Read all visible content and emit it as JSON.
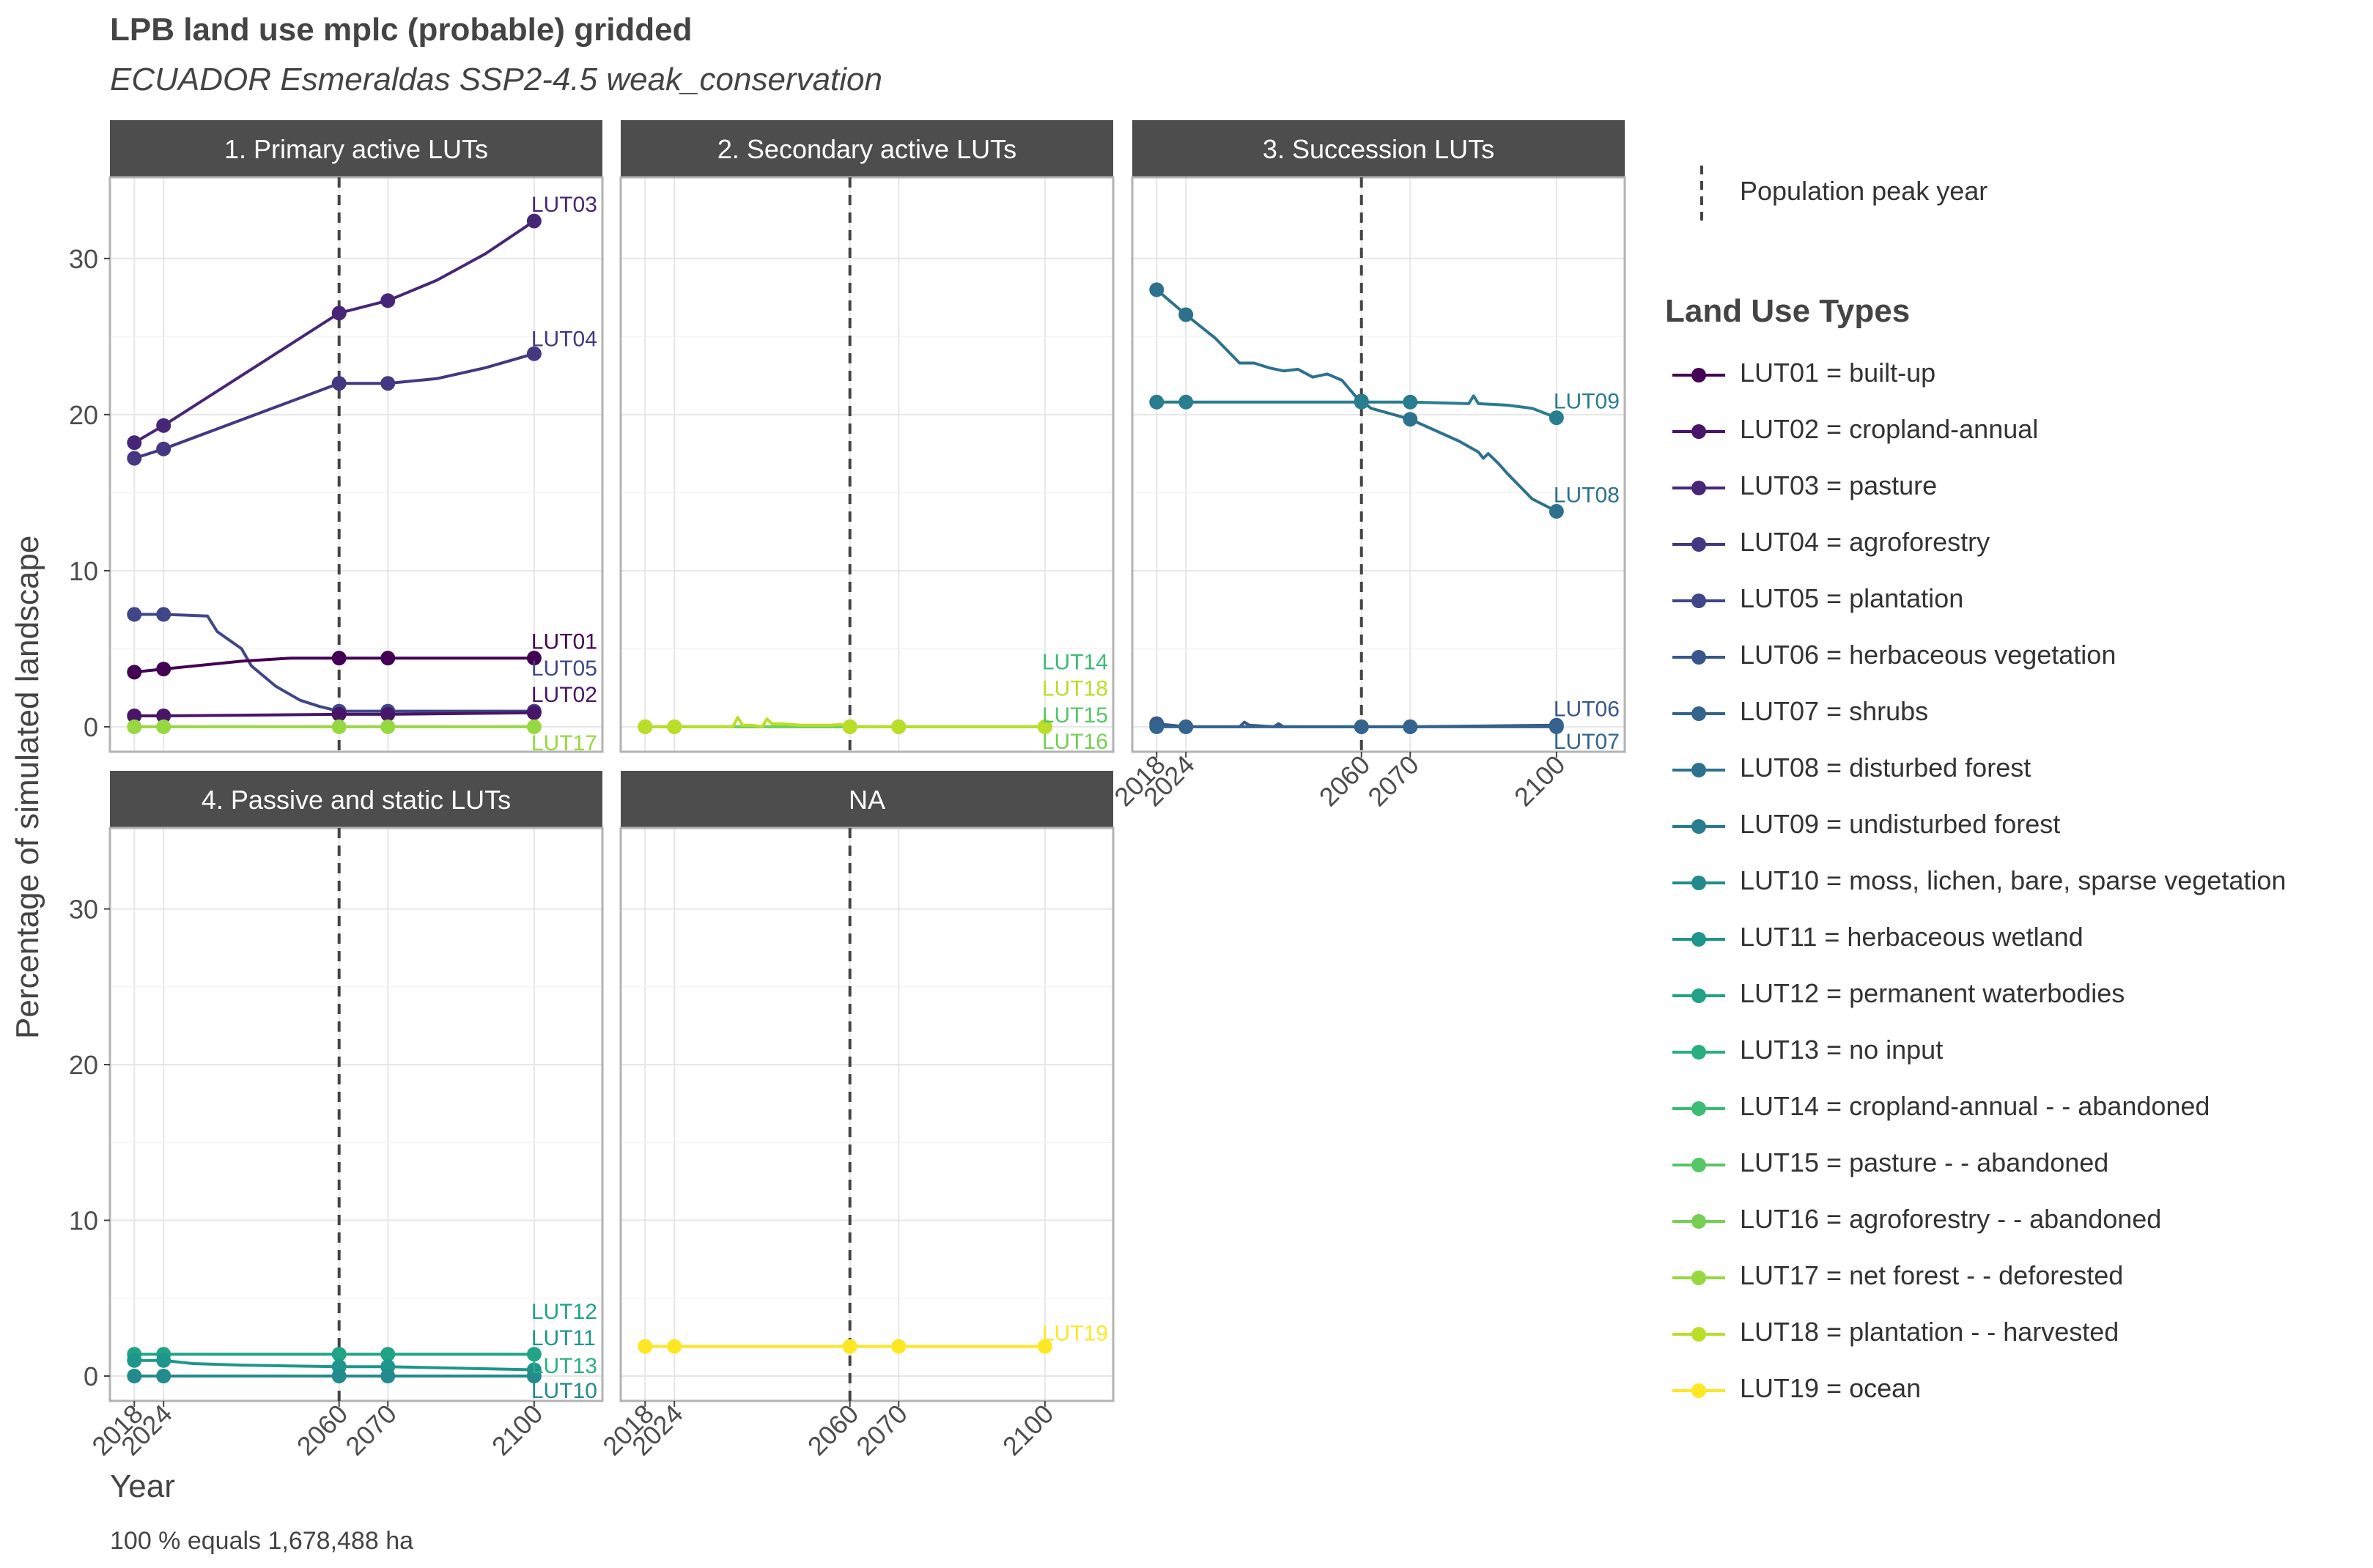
{
  "title": "LPB land use mplc (probable) gridded",
  "subtitle": "ECUADOR Esmeraldas SSP2-4.5 weak_conservation",
  "xlabel": "Year",
  "ylabel": "Percentage of simulated landscape",
  "caption": "100 % equals 1,678,488 ha",
  "legend": {
    "peak_label": "Population peak year",
    "title": "Land Use Types",
    "items": [
      {
        "key": "LUT01",
        "label": "LUT01 = built-up",
        "color": "#440154"
      },
      {
        "key": "LUT02",
        "label": "LUT02 = cropland-annual",
        "color": "#481568"
      },
      {
        "key": "LUT03",
        "label": "LUT03 = pasture",
        "color": "#482677"
      },
      {
        "key": "LUT04",
        "label": "LUT04 = agroforestry",
        "color": "#453781"
      },
      {
        "key": "LUT05",
        "label": "LUT05 = plantation",
        "color": "#3F4788"
      },
      {
        "key": "LUT06",
        "label": "LUT06 = herbaceous vegetation",
        "color": "#39568C"
      },
      {
        "key": "LUT07",
        "label": "LUT07 = shrubs",
        "color": "#32648E"
      },
      {
        "key": "LUT08",
        "label": "LUT08 = disturbed forest",
        "color": "#2D718E"
      },
      {
        "key": "LUT09",
        "label": "LUT09 = undisturbed forest",
        "color": "#287D8E"
      },
      {
        "key": "LUT10",
        "label": "LUT10 = moss, lichen, bare, sparse vegetation",
        "color": "#238A8D"
      },
      {
        "key": "LUT11",
        "label": "LUT11 = herbaceous wetland",
        "color": "#1F968B"
      },
      {
        "key": "LUT12",
        "label": "LUT12 = permanent waterbodies",
        "color": "#20A386"
      },
      {
        "key": "LUT13",
        "label": "LUT13 = no input",
        "color": "#29AF7F"
      },
      {
        "key": "LUT14",
        "label": "LUT14 = cropland-annual - - abandoned",
        "color": "#3CBC75"
      },
      {
        "key": "LUT15",
        "label": "LUT15 = pasture - - abandoned",
        "color": "#56C667"
      },
      {
        "key": "LUT16",
        "label": "LUT16 = agroforestry - - abandoned",
        "color": "#75D054"
      },
      {
        "key": "LUT17",
        "label": "LUT17 = net forest - - deforested",
        "color": "#95D840"
      },
      {
        "key": "LUT18",
        "label": "LUT18 = plantation - - harvested",
        "color": "#BADE28"
      },
      {
        "key": "LUT19",
        "label": "LUT19 = ocean",
        "color": "#FDE725"
      }
    ]
  },
  "chart_data": {
    "type": "line",
    "x_ticks": [
      "2018",
      "2024",
      "2060",
      "2070",
      "2100"
    ],
    "x_range": [
      2013,
      2114
    ],
    "y_ticks": [
      "0",
      "10",
      "20",
      "30"
    ],
    "y_range": [
      -1.6,
      35.2
    ],
    "peak_year": 2060,
    "grid": true,
    "panels": [
      {
        "title": "1. Primary active LUTs",
        "series": [
          {
            "name": "LUT03",
            "x": [
              2018,
              2024,
              2045,
              2060,
              2070,
              2080,
              2090,
              2100
            ],
            "y": [
              18.2,
              19.3,
              23.5,
              26.5,
              27.3,
              28.6,
              30.3,
              32.4
            ],
            "points": [
              2018,
              2024,
              2060,
              2070,
              2100
            ]
          },
          {
            "name": "LUT04",
            "x": [
              2018,
              2024,
              2060,
              2070,
              2080,
              2090,
              2100
            ],
            "y": [
              17.2,
              17.8,
              22.0,
              22.0,
              22.3,
              23.0,
              23.9
            ],
            "points": [
              2018,
              2024,
              2060,
              2070,
              2100
            ]
          },
          {
            "name": "LUT05",
            "x": [
              2018,
              2024,
              2033,
              2035,
              2040,
              2042,
              2047,
              2052,
              2056,
              2060,
              2070,
              2100
            ],
            "y": [
              7.2,
              7.2,
              7.1,
              6.1,
              5.0,
              3.9,
              2.6,
              1.7,
              1.3,
              1.0,
              1.0,
              1.0
            ],
            "points": [
              2018,
              2024,
              2060,
              2070,
              2100
            ]
          },
          {
            "name": "LUT01",
            "x": [
              2018,
              2024,
              2040,
              2050,
              2060,
              2070,
              2100
            ],
            "y": [
              3.5,
              3.7,
              4.2,
              4.4,
              4.4,
              4.4,
              4.4
            ],
            "points": [
              2018,
              2024,
              2060,
              2070,
              2100
            ]
          },
          {
            "name": "LUT02",
            "x": [
              2018,
              2024,
              2060,
              2070,
              2100
            ],
            "y": [
              0.7,
              0.7,
              0.8,
              0.8,
              0.9
            ],
            "points": [
              2018,
              2024,
              2060,
              2070,
              2100
            ]
          },
          {
            "name": "LUT17",
            "x": [
              2018,
              2024,
              2060,
              2070,
              2100
            ],
            "y": [
              0.0,
              0.0,
              0.0,
              0.0,
              0.0
            ],
            "points": [
              2018,
              2024,
              2060,
              2070,
              2100
            ]
          }
        ],
        "labels": [
          {
            "text": "LUT03",
            "series": "LUT03",
            "y": 33.5
          },
          {
            "text": "LUT04",
            "series": "LUT04",
            "y": 24.9
          },
          {
            "text": "LUT01",
            "series": "LUT01",
            "y": 5.5
          },
          {
            "text": "LUT05",
            "series": "LUT05",
            "y": 3.8
          },
          {
            "text": "LUT02",
            "series": "LUT02",
            "y": 2.1
          },
          {
            "text": "LUT17",
            "series": "LUT17",
            "y": -1.0
          }
        ]
      },
      {
        "title": "2. Secondary active LUTs",
        "series": [
          {
            "name": "LUT14",
            "x": [
              2018,
              2100
            ],
            "y": [
              0.0,
              0.0
            ],
            "points": [
              2018,
              2024,
              2060,
              2070,
              2100
            ]
          },
          {
            "name": "LUT15",
            "x": [
              2018,
              2100
            ],
            "y": [
              0.0,
              0.0
            ],
            "points": []
          },
          {
            "name": "LUT16",
            "x": [
              2018,
              2100
            ],
            "y": [
              0.0,
              0.0
            ],
            "points": []
          },
          {
            "name": "LUT18",
            "x": [
              2018,
              2024,
              2036,
              2037,
              2038,
              2040,
              2042,
              2043,
              2044,
              2046,
              2048,
              2050,
              2056,
              2058,
              2060,
              2070,
              2100
            ],
            "y": [
              0.0,
              0.0,
              0.0,
              0.6,
              0.1,
              0.1,
              0.0,
              0.5,
              0.2,
              0.2,
              0.15,
              0.1,
              0.1,
              0.15,
              0.0,
              0.0,
              0.0
            ],
            "points": [
              2018,
              2024,
              2060,
              2070,
              2100
            ]
          }
        ],
        "labels": [
          {
            "text": "LUT14",
            "series": "LUT14",
            "y": 4.2
          },
          {
            "text": "LUT18",
            "series": "LUT18",
            "y": 2.5
          },
          {
            "text": "LUT15",
            "series": "LUT15",
            "y": 0.8
          },
          {
            "text": "LUT16",
            "series": "LUT16",
            "y": -0.9
          }
        ]
      },
      {
        "title": "3. Succession LUTs",
        "series": [
          {
            "name": "LUT08",
            "x": [
              2018,
              2024,
              2030,
              2035,
              2038,
              2041,
              2044,
              2047,
              2050,
              2053,
              2056,
              2059,
              2062,
              2070,
              2080,
              2084,
              2085,
              2086,
              2088,
              2090,
              2095,
              2100
            ],
            "y": [
              28.0,
              26.4,
              24.9,
              23.3,
              23.3,
              23.0,
              22.8,
              22.9,
              22.4,
              22.6,
              22.2,
              21.1,
              20.4,
              19.7,
              18.3,
              17.6,
              17.2,
              17.5,
              16.9,
              16.2,
              14.6,
              13.8
            ],
            "points": [
              2018,
              2024,
              2060,
              2070,
              2100
            ]
          },
          {
            "name": "LUT09",
            "x": [
              2018,
              2024,
              2060,
              2070,
              2082,
              2083,
              2084,
              2090,
              2095,
              2100
            ],
            "y": [
              20.8,
              20.8,
              20.8,
              20.8,
              20.7,
              21.2,
              20.7,
              20.6,
              20.4,
              19.8
            ],
            "points": [
              2018,
              2024,
              2060,
              2070,
              2100
            ]
          },
          {
            "name": "LUT06",
            "x": [
              2018,
              2024,
              2035,
              2036,
              2037,
              2042,
              2043,
              2044,
              2060,
              2070,
              2100
            ],
            "y": [
              0.2,
              0.0,
              0.0,
              0.3,
              0.1,
              0.0,
              0.2,
              0.0,
              0.0,
              0.0,
              0.1
            ],
            "points": [
              2018,
              2024,
              2060,
              2070,
              2100
            ]
          },
          {
            "name": "LUT07",
            "x": [
              2018,
              2024,
              2060,
              2070,
              2100
            ],
            "y": [
              0.0,
              0.0,
              0.0,
              0.0,
              0.0
            ],
            "points": [
              2018,
              2024,
              2060,
              2070,
              2100
            ]
          }
        ],
        "labels": [
          {
            "text": "LUT09",
            "series": "LUT09",
            "y": 20.9
          },
          {
            "text": "LUT08",
            "series": "LUT08",
            "y": 14.9
          },
          {
            "text": "LUT06",
            "series": "LUT06",
            "y": 1.2
          },
          {
            "text": "LUT07",
            "series": "LUT07",
            "y": -0.9
          }
        ]
      },
      {
        "title": "4. Passive and static LUTs",
        "series": [
          {
            "name": "LUT12",
            "x": [
              2018,
              2024,
              2060,
              2070,
              2100
            ],
            "y": [
              1.4,
              1.4,
              1.4,
              1.4,
              1.4
            ],
            "points": [
              2018,
              2024,
              2060,
              2070,
              2100
            ]
          },
          {
            "name": "LUT11",
            "x": [
              2018,
              2024,
              2030,
              2040,
              2060,
              2070,
              2100
            ],
            "y": [
              1.0,
              1.0,
              0.8,
              0.7,
              0.6,
              0.6,
              0.4
            ],
            "points": [
              2018,
              2024,
              2060,
              2070,
              2100
            ]
          },
          {
            "name": "LUT13",
            "x": [
              2018,
              2100
            ],
            "y": [
              0.0,
              0.0
            ],
            "points": []
          },
          {
            "name": "LUT10",
            "x": [
              2018,
              2024,
              2060,
              2070,
              2100
            ],
            "y": [
              0.0,
              0.0,
              0.0,
              0.0,
              0.0
            ],
            "points": [
              2018,
              2024,
              2060,
              2070,
              2100
            ]
          }
        ],
        "labels": [
          {
            "text": "LUT12",
            "series": "LUT12",
            "y": 4.2
          },
          {
            "text": "LUT11",
            "series": "LUT11",
            "y": 2.5
          },
          {
            "text": "LUT13",
            "series": "LUT13",
            "y": 0.7
          },
          {
            "text": "LUT10",
            "series": "LUT10",
            "y": -0.9
          }
        ]
      },
      {
        "title": "NA",
        "series": [
          {
            "name": "LUT19",
            "x": [
              2018,
              2024,
              2060,
              2070,
              2100
            ],
            "y": [
              1.9,
              1.9,
              1.9,
              1.9,
              1.9
            ],
            "points": [
              2018,
              2024,
              2060,
              2070,
              2100
            ]
          }
        ],
        "labels": [
          {
            "text": "LUT19",
            "series": "LUT19",
            "y": 2.8
          }
        ]
      }
    ]
  }
}
